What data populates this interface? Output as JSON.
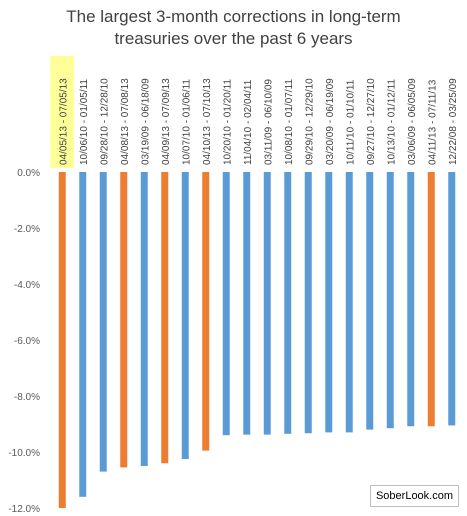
{
  "chart_data": {
    "type": "bar",
    "title_lines": [
      "The largest 3-month corrections in long-term",
      "treasuries over the past 6 years"
    ],
    "categories": [
      "04/05/13 - 07/05/13",
      "10/06/10 - 01/05/11",
      "09/28/10 - 12/28/10",
      "04/08/13 - 07/08/13",
      "03/19/09 - 06/18/09",
      "04/09/13 - 07/09/13",
      "10/07/10 - 01/06/11",
      "04/10/13 - 07/10/13",
      "10/20/10 - 01/20/11",
      "11/04/10 - 02/04/11",
      "03/11/09 - 06/10/09",
      "10/08/10 - 01/07/11",
      "09/29/10 - 12/29/10",
      "03/20/09 - 06/19/09",
      "10/11/10 - 01/10/11",
      "09/27/10 - 12/27/10",
      "10/13/10 - 01/12/11",
      "03/06/09 - 06/05/09",
      "04/11/13 - 07/11/13",
      "12/22/08 - 03/25/09"
    ],
    "values": [
      -12.0,
      -11.6,
      -10.7,
      -10.55,
      -10.5,
      -10.4,
      -10.25,
      -9.95,
      -9.4,
      -9.38,
      -9.38,
      -9.35,
      -9.33,
      -9.3,
      -9.3,
      -9.2,
      -9.15,
      -9.08,
      -9.08,
      -9.05
    ],
    "highlight_indices": [
      0,
      3,
      5,
      7,
      18
    ],
    "highlighted_category_index": 0,
    "colors": {
      "default": "#5B9BD5",
      "highlight": "#ED7D31",
      "label_highlight_bg": "#FFFF99"
    },
    "yticks": [
      "0.0%",
      "-2.0%",
      "-4.0%",
      "-6.0%",
      "-8.0%",
      "-10.0%",
      "-12.0%"
    ],
    "ylim": [
      -12,
      0
    ],
    "grid": false,
    "xlabel": "",
    "ylabel": ""
  },
  "watermark": "SoberLook.com"
}
